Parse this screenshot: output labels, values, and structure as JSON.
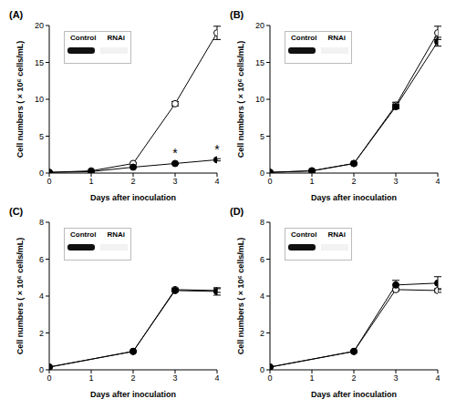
{
  "chart_data": [
    {
      "type": "line",
      "title": "(A)",
      "x_label": "Days after inoculation",
      "y_label": "Cell numbers ( × 10⁶ cells/mL)",
      "x": [
        0,
        1,
        2,
        3,
        4
      ],
      "xlim": [
        0,
        4
      ],
      "xticks": [
        0,
        1,
        2,
        3,
        4
      ],
      "ylim": [
        0,
        20
      ],
      "yticks": [
        0,
        5,
        10,
        15,
        20
      ],
      "series": [
        {
          "name": "Control",
          "color": "#000000",
          "marker": "circle_open",
          "values": [
            0.1,
            0.3,
            1.3,
            9.4,
            19.0
          ],
          "errors": [
            0,
            0,
            0.1,
            0.3,
            0.9
          ]
        },
        {
          "name": "RNAi",
          "color": "#000000",
          "marker": "circle",
          "values": [
            0.1,
            0.2,
            0.8,
            1.3,
            1.8
          ],
          "errors": [
            0,
            0,
            0.05,
            0.1,
            0.15
          ]
        }
      ],
      "annotations": [
        {
          "x": 3,
          "y": 1.3,
          "text": "*"
        },
        {
          "x": 4,
          "y": 1.8,
          "text": "*"
        }
      ]
    },
    {
      "type": "line",
      "title": "(B)",
      "x_label": "Days after inoculation",
      "y_label": "Cell numbers ( × 10⁶ cells/mL)",
      "x": [
        0,
        1,
        2,
        3,
        4
      ],
      "xlim": [
        0,
        4
      ],
      "xticks": [
        0,
        1,
        2,
        3,
        4
      ],
      "ylim": [
        0,
        20
      ],
      "yticks": [
        0,
        5,
        10,
        15,
        20
      ],
      "series": [
        {
          "name": "Control",
          "color": "#000000",
          "marker": "circle_open",
          "values": [
            0.1,
            0.3,
            1.3,
            9.2,
            19.0
          ],
          "errors": [
            0,
            0,
            0.1,
            0.4,
            0.9
          ]
        },
        {
          "name": "RNAi",
          "color": "#000000",
          "marker": "circle",
          "values": [
            0.1,
            0.3,
            1.3,
            9.0,
            17.8
          ],
          "errors": [
            0,
            0,
            0.1,
            0.3,
            0.6
          ]
        }
      ]
    },
    {
      "type": "line",
      "title": "(C)",
      "x_label": "Days after inoculation",
      "y_label": "Cell numbers ( × 10⁶ cells/mL)",
      "x": [
        0,
        2,
        3,
        4
      ],
      "xlim": [
        0,
        4
      ],
      "xticks": [
        0,
        1,
        2,
        3,
        4
      ],
      "ylim": [
        0,
        8
      ],
      "yticks": [
        0,
        2,
        4,
        6,
        8
      ],
      "series": [
        {
          "name": "Control",
          "color": "#000000",
          "marker": "circle_open",
          "values": [
            0.15,
            1.0,
            4.35,
            4.3
          ],
          "errors": [
            0,
            0.03,
            0.08,
            0.1
          ]
        },
        {
          "name": "RNAi",
          "color": "#000000",
          "marker": "circle",
          "values": [
            0.15,
            1.0,
            4.3,
            4.25
          ],
          "errors": [
            0,
            0.03,
            0.08,
            0.2
          ]
        }
      ]
    },
    {
      "type": "line",
      "title": "(D)",
      "x_label": "Days after inoculation",
      "y_label": "Cell numbers ( × 10⁶ cells/mL)",
      "x": [
        0,
        2,
        3,
        4
      ],
      "xlim": [
        0,
        4
      ],
      "xticks": [
        0,
        1,
        2,
        3,
        4
      ],
      "ylim": [
        0,
        8
      ],
      "yticks": [
        0,
        2,
        4,
        6,
        8
      ],
      "series": [
        {
          "name": "Control",
          "color": "#000000",
          "marker": "circle_open",
          "values": [
            0.15,
            1.0,
            4.35,
            4.3
          ],
          "errors": [
            0,
            0.03,
            0.08,
            0.1
          ]
        },
        {
          "name": "RNAi",
          "color": "#000000",
          "marker": "circle",
          "values": [
            0.15,
            1.0,
            4.6,
            4.7
          ],
          "errors": [
            0,
            0.05,
            0.25,
            0.35
          ]
        }
      ]
    }
  ]
}
